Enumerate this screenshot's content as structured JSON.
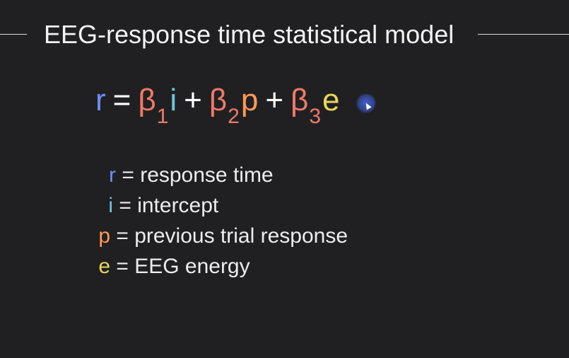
{
  "slide": {
    "title": "EEG-response time statistical model"
  },
  "equation": {
    "lhs": "r",
    "equals": "=",
    "terms": [
      {
        "coef": "β",
        "sub": "1",
        "var": "i"
      },
      {
        "coef": "β",
        "sub": "2",
        "var": "p"
      },
      {
        "coef": "β",
        "sub": "3",
        "var": "e"
      }
    ],
    "plus": "+"
  },
  "legend": [
    {
      "symbol": "r",
      "text": "= response time",
      "color": "#6c8ff2"
    },
    {
      "symbol": "i",
      "text": "= intercept",
      "color": "#6ec6d8"
    },
    {
      "symbol": "p",
      "text": "= previous trial response",
      "color": "#ff9a55"
    },
    {
      "symbol": "e",
      "text": "= EEG energy",
      "color": "#e8d65c"
    }
  ],
  "colors": {
    "background": "#202022",
    "r": "#6c8ff2",
    "i": "#6ec6d8",
    "p": "#ff9a55",
    "e": "#e8d65c",
    "beta": "#ef7a6a",
    "cursor": "#4664dc"
  },
  "icons": {
    "cursor": "presentation-pointer-icon"
  }
}
